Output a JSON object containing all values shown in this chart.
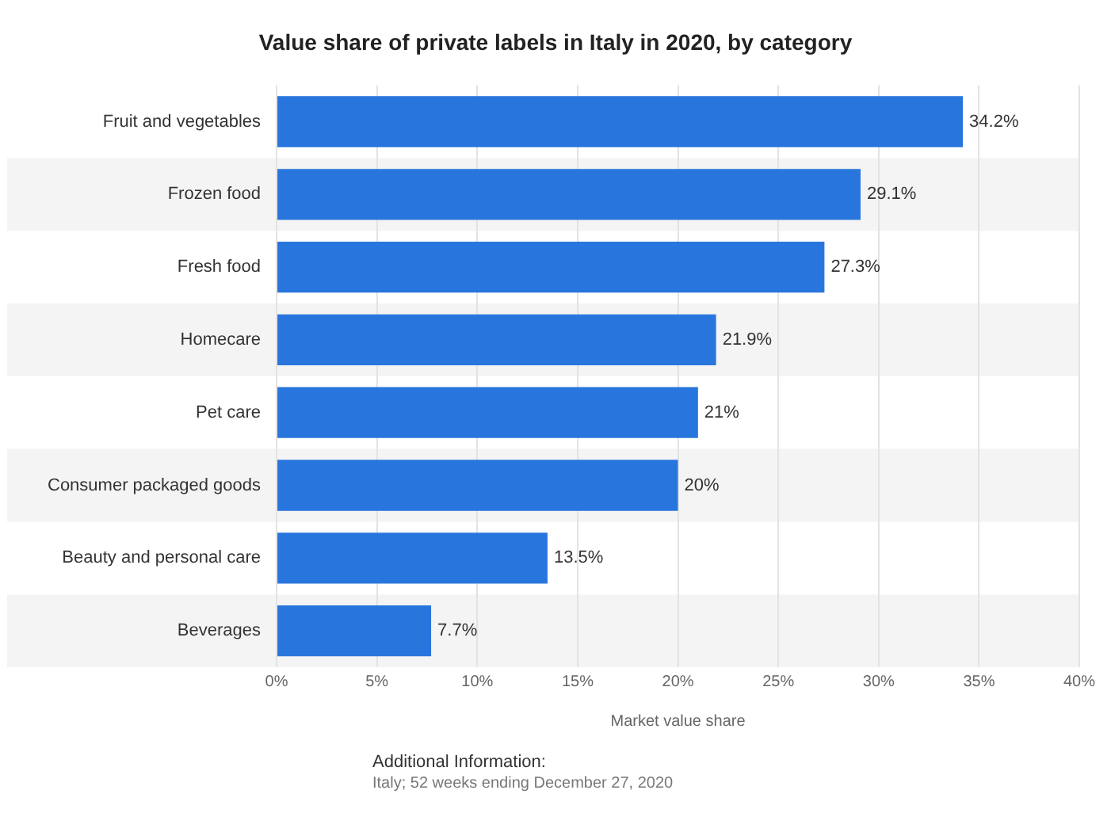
{
  "chart_data": {
    "type": "bar",
    "orientation": "horizontal",
    "title": "Value share of private labels in Italy in 2020, by category",
    "xlabel": "Market value share",
    "categories": [
      "Fruit and vegetables",
      "Frozen food",
      "Fresh food",
      "Homecare",
      "Pet care",
      "Consumer packaged goods",
      "Beauty and personal care",
      "Beverages"
    ],
    "values": [
      34.2,
      29.1,
      27.3,
      21.9,
      21,
      20,
      13.5,
      7.7
    ],
    "value_labels": [
      "34.2%",
      "29.1%",
      "27.3%",
      "21.9%",
      "21%",
      "20%",
      "13.5%",
      "7.7%"
    ],
    "color": "#2876dd",
    "xlim": [
      0,
      40
    ],
    "xticks": [
      {
        "value": 0,
        "label": "0%"
      },
      {
        "value": 5,
        "label": "5%"
      },
      {
        "value": 10,
        "label": "10%"
      },
      {
        "value": 15,
        "label": "15%"
      },
      {
        "value": 20,
        "label": "20%"
      },
      {
        "value": 25,
        "label": "25%"
      },
      {
        "value": 30,
        "label": "30%"
      },
      {
        "value": 35,
        "label": "35%"
      },
      {
        "value": 40,
        "label": "40%"
      }
    ],
    "grid": "x",
    "legend": false,
    "annotations": [
      "Additional Information:",
      "Italy; 52 weeks ending December 27, 2020"
    ]
  }
}
